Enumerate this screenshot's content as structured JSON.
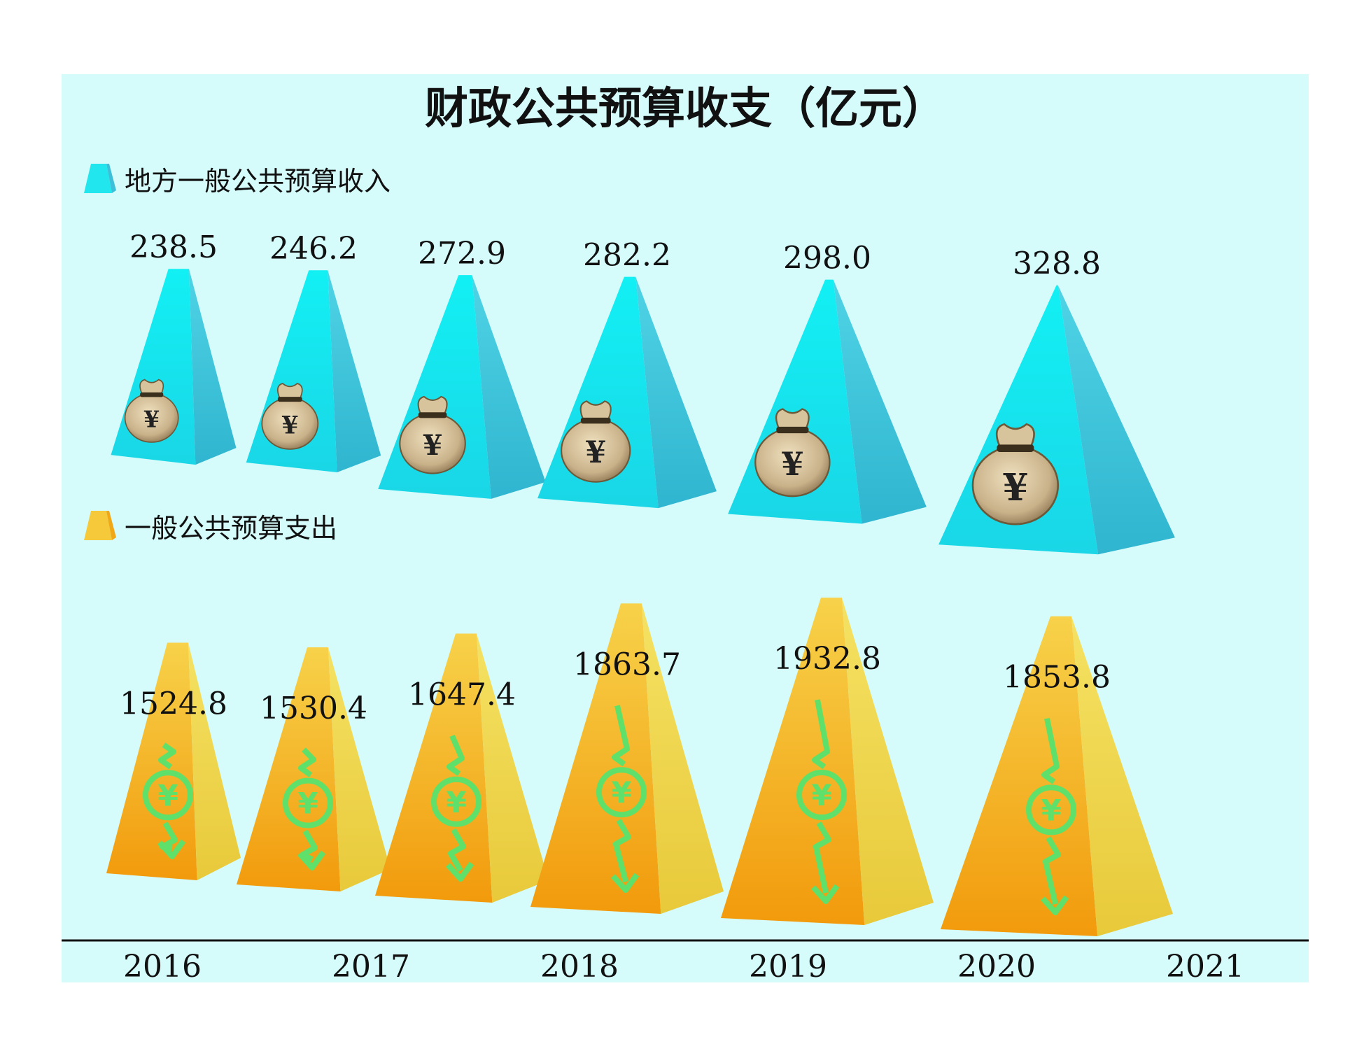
{
  "chart_data": {
    "type": "bar",
    "title": "财政公共预算收支（亿元）",
    "categories": [
      "2016",
      "2017",
      "2018",
      "2019",
      "2020",
      "2021"
    ],
    "series": [
      {
        "name": "地方一般公共预算收入",
        "values": [
          238.5,
          246.2,
          272.9,
          282.2,
          298.0,
          328.8
        ]
      },
      {
        "name": "一般公共预算支出",
        "values": [
          1524.8,
          1530.4,
          1647.4,
          1863.7,
          1932.8,
          1853.8
        ]
      }
    ],
    "value_labels": {
      "income": [
        "238.5",
        "246.2",
        "272.9",
        "282.2",
        "298.0",
        "328.8"
      ],
      "expenditure": [
        "1524.8",
        "1530.4",
        "1647.4",
        "1863.7",
        "1932.8",
        "1853.8"
      ]
    },
    "colors": {
      "background": "#d5fbfb",
      "income_light": "#1fe8ef",
      "income_dark": "#39c7dc",
      "expenditure_light": "#f5d640",
      "expenditure_dark": "#f29a0c",
      "arrow": "#5ee06a"
    },
    "icons": {
      "income": "money-bag-icon",
      "expenditure": "yen-down-arrow-icon"
    }
  }
}
